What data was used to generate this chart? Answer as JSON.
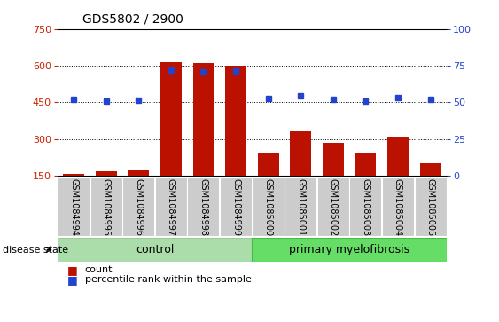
{
  "title": "GDS5802 / 2900",
  "samples": [
    "GSM1084994",
    "GSM1084995",
    "GSM1084996",
    "GSM1084997",
    "GSM1084998",
    "GSM1084999",
    "GSM1085000",
    "GSM1085001",
    "GSM1085002",
    "GSM1085003",
    "GSM1085004",
    "GSM1085005"
  ],
  "counts": [
    155,
    168,
    172,
    615,
    610,
    600,
    240,
    330,
    283,
    240,
    308,
    200
  ],
  "percentile_ranks_left_scale": [
    462,
    455,
    458,
    581,
    576,
    579,
    466,
    476,
    461,
    454,
    469,
    461
  ],
  "ylim_left": [
    150,
    750
  ],
  "ylim_right": [
    0,
    100
  ],
  "yticks_left": [
    150,
    300,
    450,
    600,
    750
  ],
  "yticks_right": [
    0,
    25,
    50,
    75,
    100
  ],
  "control_count": 6,
  "bar_color": "#bb1100",
  "dot_color": "#2244cc",
  "label_color_left": "#cc2200",
  "label_color_right": "#2244cc",
  "control_label": "control",
  "disease_label": "primary myelofibrosis",
  "disease_state_label": "disease state",
  "legend_count": "count",
  "legend_percentile": "percentile rank within the sample",
  "sample_box_color": "#cccccc",
  "group_color_control": "#aaddaa",
  "group_color_disease": "#66dd66",
  "grid_dotted_at": [
    300,
    450,
    600
  ]
}
